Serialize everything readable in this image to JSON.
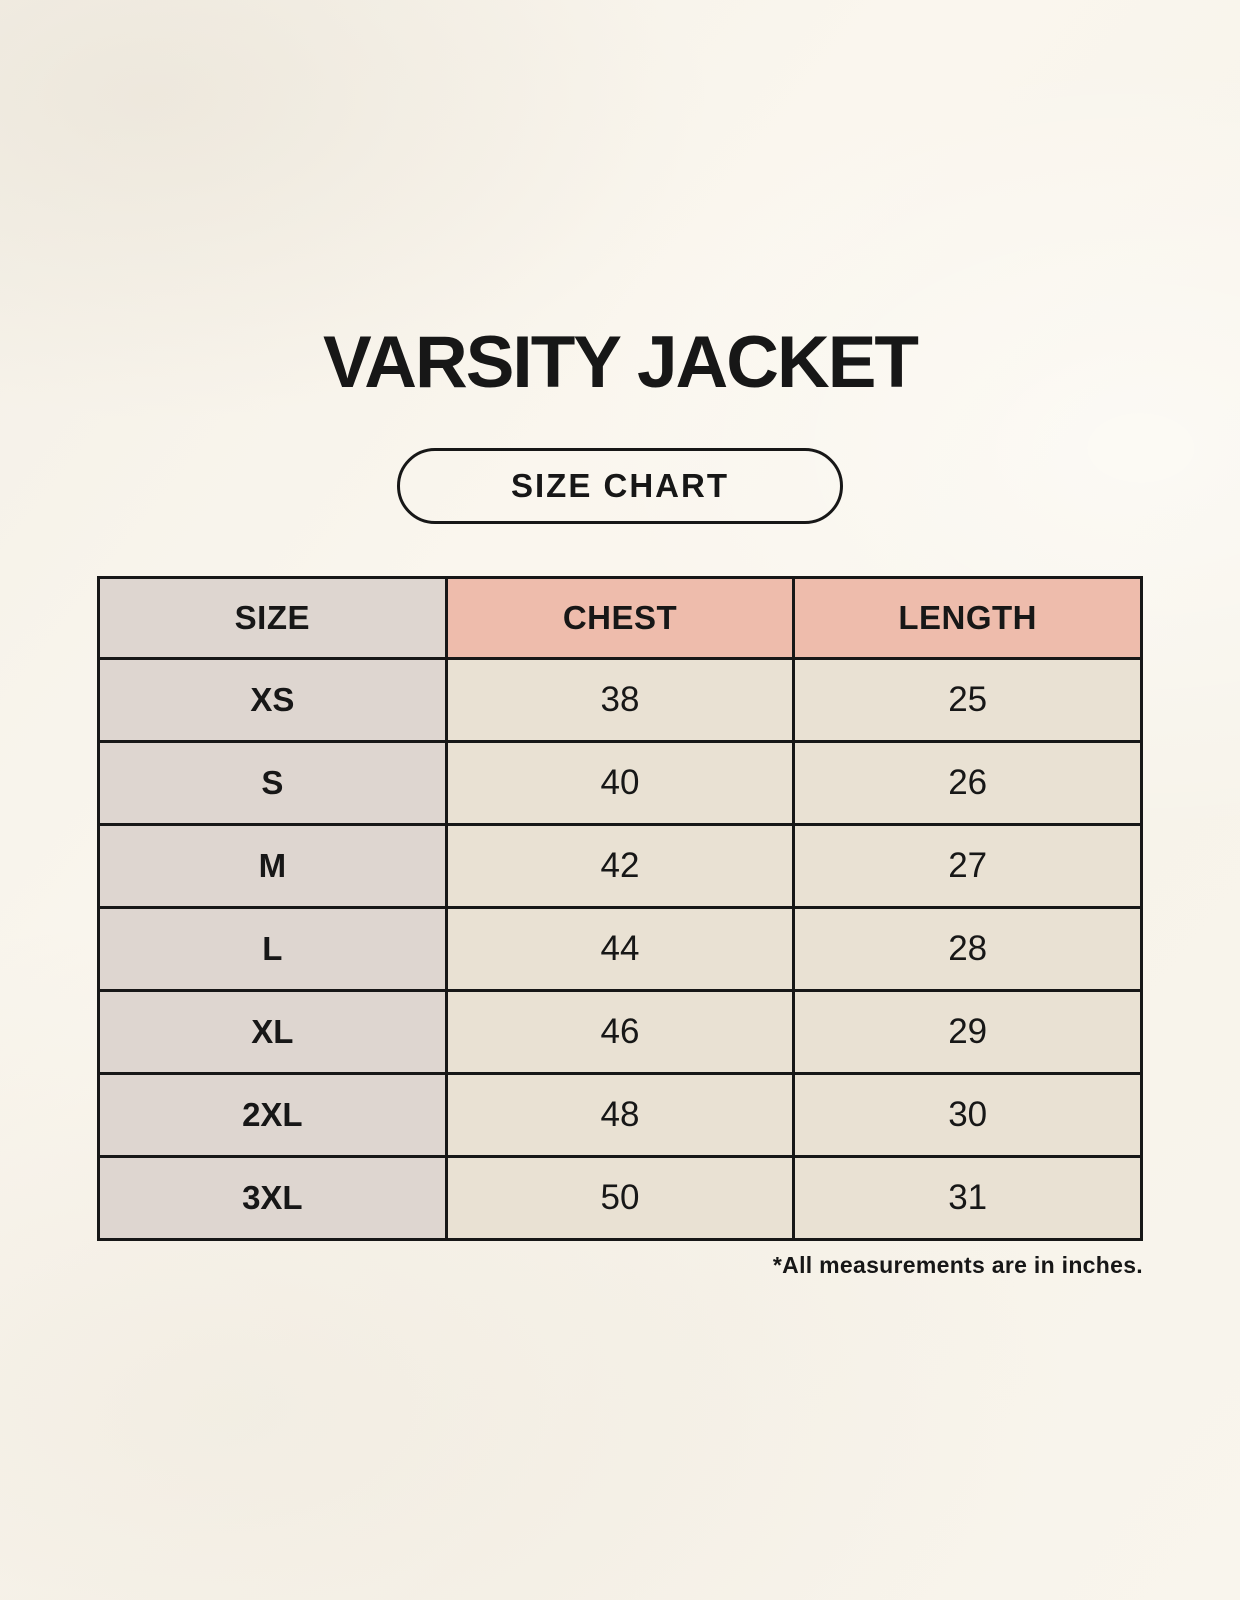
{
  "page": {
    "title": "VARSITY JACKET",
    "badge_label": "SIZE CHART",
    "footnote": "*All measurements are in inches."
  },
  "colors": {
    "background": "#f8f4ec",
    "header_size_bg": "#ded6d0",
    "header_measure_bg": "#eebcac",
    "size_col_bg": "#ded6d0",
    "data_cell_bg": "#e9e1d3",
    "border": "#171717",
    "text": "#171717"
  },
  "chart_data": {
    "type": "table",
    "title": "VARSITY JACKET",
    "subtitle": "SIZE CHART",
    "columns": [
      "SIZE",
      "CHEST",
      "LENGTH"
    ],
    "rows": [
      [
        "XS",
        "38",
        "25"
      ],
      [
        "S",
        "40",
        "26"
      ],
      [
        "M",
        "42",
        "27"
      ],
      [
        "L",
        "44",
        "28"
      ],
      [
        "XL",
        "46",
        "29"
      ],
      [
        "2XL",
        "48",
        "30"
      ],
      [
        "3XL",
        "50",
        "31"
      ]
    ],
    "note": "*All measurements are in inches."
  }
}
